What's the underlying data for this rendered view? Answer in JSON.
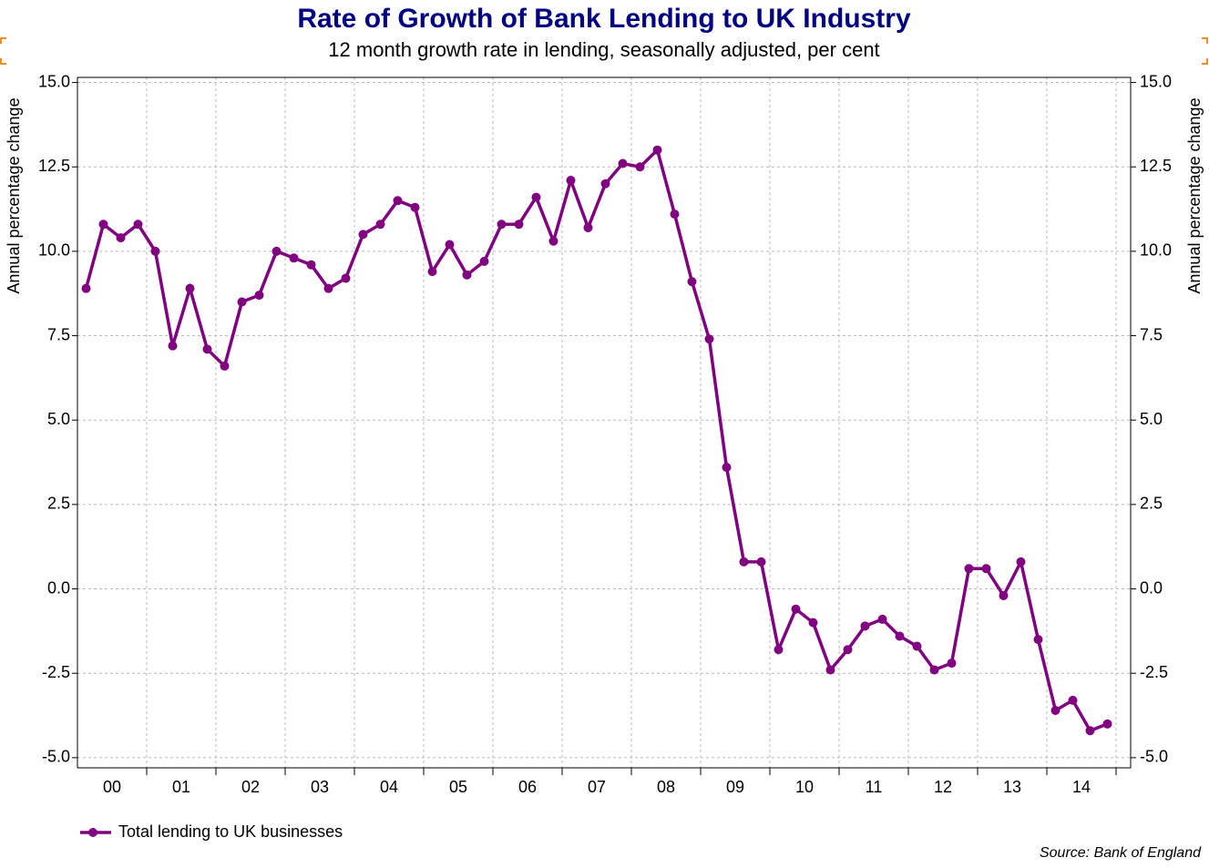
{
  "chart_data": {
    "type": "line",
    "title": "Rate of Growth of Bank Lending to UK Industry",
    "subtitle": "12 month growth rate in lending, seasonally adjusted, per cent",
    "y_axis_label": "Annual percentage change",
    "y2_axis_label": "Annual percentage change",
    "source": "Source: Bank of England",
    "year_labels": [
      "00",
      "01",
      "02",
      "03",
      "04",
      "05",
      "06",
      "07",
      "08",
      "09",
      "10",
      "11",
      "12",
      "13",
      "14"
    ],
    "ylim": [
      -5.3,
      15.15
    ],
    "yticks": [
      {
        "value": 15,
        "label": "15.0"
      },
      12.5,
      {
        "value": 10,
        "label": "10.0"
      },
      7.5,
      {
        "value": 5,
        "label": "5.0"
      },
      2.5,
      {
        "value": 0,
        "label": "0.0"
      },
      -2.5,
      {
        "value": -5,
        "label": "-5.0"
      }
    ],
    "grid": true,
    "legend": "bottom-left",
    "series": [
      {
        "name": "Total lending to UK businesses",
        "color": "#800080",
        "values": [
          8.9,
          10.8,
          10.4,
          10.8,
          10.0,
          7.2,
          8.9,
          7.1,
          6.6,
          8.5,
          8.7,
          10.0,
          9.8,
          9.6,
          8.9,
          9.2,
          10.5,
          10.8,
          11.5,
          11.3,
          9.4,
          10.2,
          9.3,
          9.7,
          10.8,
          10.8,
          11.6,
          10.3,
          12.1,
          10.7,
          12.0,
          12.6,
          12.5,
          13.0,
          11.1,
          9.1,
          7.4,
          3.6,
          0.8,
          0.8,
          -1.8,
          -0.6,
          -1.0,
          -2.4,
          -1.8,
          -1.1,
          -0.9,
          -1.4,
          -1.7,
          -2.4,
          -2.2,
          0.6,
          0.6,
          -0.2,
          0.8,
          -1.5,
          -3.6,
          -3.3,
          -4.2,
          -4.0
        ]
      }
    ]
  }
}
